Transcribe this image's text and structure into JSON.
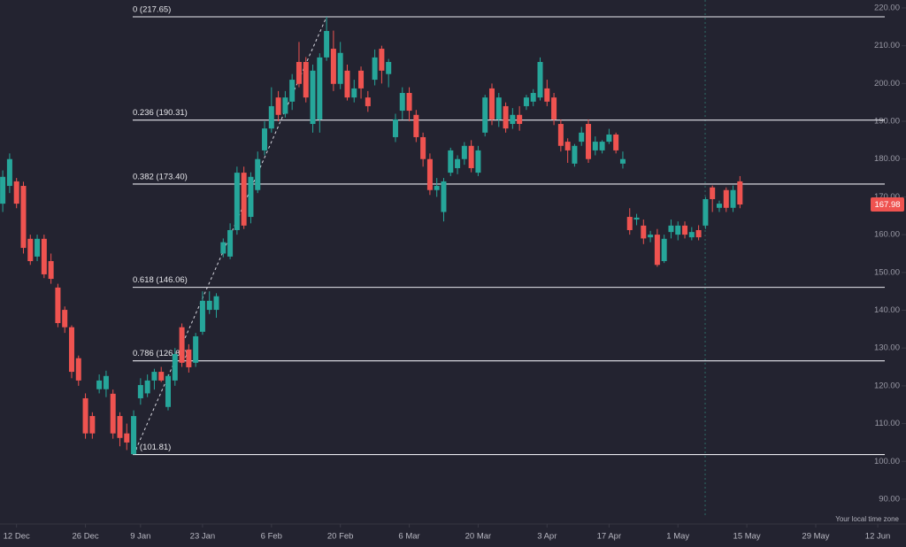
{
  "chart_data": {
    "type": "candlestick",
    "background": "#232330",
    "up_color": "#26a69a",
    "down_color": "#ef5350",
    "open": [
      168.2,
      172.9,
      174.1,
      172.9,
      158.9,
      154.2,
      158.9,
      153,
      146,
      140.1,
      135.5,
      127.3,
      116.7,
      112,
      119.1,
      119.1,
      117.9,
      112,
      107.4,
      101.9,
      116.7,
      118,
      121.4,
      123.7,
      114.4,
      121.4,
      135.5,
      129.6,
      126.1,
      134.3,
      140.1,
      140.1,
      155,
      154.2,
      161.2,
      176.4,
      164.7,
      171.8,
      182.3,
      188.1,
      196.3,
      192,
      195.2,
      205.7,
      205.7,
      189.3,
      190.5,
      206.9,
      209.2,
      199.9,
      203.4,
      196.3,
      203.4,
      196.3,
      201,
      209.2,
      202.5,
      185.8,
      192.8,
      197.5,
      191.7,
      185.8,
      180,
      171.8,
      166,
      176.4,
      177.6,
      180,
      183.5,
      176.4,
      187,
      198.7,
      190.5,
      194,
      189.3,
      191.7,
      194,
      195.2,
      196.3,
      198.7,
      196.3,
      189.3,
      184.6,
      178.8,
      184.6,
      189.3,
      182.3,
      182.3,
      184.6,
      186.5,
      178.8,
      164.7,
      164,
      162.4,
      159.3,
      160,
      153,
      160.7,
      160,
      162.4,
      159.3,
      161.2,
      162.4,
      172.5,
      167.1,
      171.8,
      167.1,
      174.1
    ],
    "high": [
      177,
      181.5,
      175,
      174,
      160,
      160,
      160,
      155,
      147,
      141,
      136,
      128,
      118,
      113,
      123,
      124,
      119,
      113,
      110,
      113.5,
      122,
      123,
      124.5,
      125,
      123,
      130,
      136.5,
      131,
      134,
      145,
      145,
      144.5,
      159,
      163,
      178,
      178,
      176.5,
      182,
      190,
      199,
      198,
      198,
      202.5,
      211,
      207,
      205,
      208,
      217.65,
      214,
      211,
      205,
      201,
      204.5,
      198,
      209,
      210,
      206.5,
      192,
      199,
      199,
      193,
      187,
      181.5,
      175,
      175,
      183,
      181,
      184.5,
      185,
      183.5,
      197,
      200,
      197.5,
      195,
      193.5,
      194,
      197,
      198.5,
      206.9,
      201,
      197.5,
      190.5,
      185.5,
      184,
      188.5,
      190.5,
      186,
      185,
      188,
      187,
      182,
      167,
      165.5,
      164,
      161,
      161.5,
      160,
      164,
      163.5,
      163.5,
      162,
      162.5,
      170,
      173,
      169,
      172.5,
      173,
      175.5
    ],
    "low": [
      166,
      171,
      167,
      155,
      152,
      153,
      148.5,
      147,
      135.5,
      134,
      122,
      120,
      106,
      106,
      118,
      117,
      106,
      104,
      103,
      101.81,
      115,
      117,
      119,
      121,
      113.5,
      120,
      125,
      123.5,
      125,
      133.5,
      139,
      138,
      154,
      153.5,
      160,
      161.5,
      163,
      171,
      181,
      187,
      190,
      191,
      193,
      199,
      195,
      187,
      187,
      206,
      198,
      198.5,
      195.5,
      195,
      196,
      192.5,
      199.5,
      200,
      199,
      184.5,
      190.5,
      190,
      184.5,
      178,
      170.5,
      170,
      163.5,
      175.5,
      176,
      178.5,
      176.5,
      175.5,
      186,
      189,
      188.5,
      187,
      188,
      187.5,
      193,
      194,
      195.5,
      194,
      189,
      182,
      179,
      178,
      183.5,
      179,
      181,
      181.5,
      184,
      181.5,
      177.5,
      160,
      162.5,
      157.5,
      158,
      151.5,
      152.5,
      159,
      158.5,
      159,
      158.5,
      158.5,
      161.5,
      166,
      166,
      166,
      166,
      167
    ],
    "close": [
      175.3,
      180,
      168.2,
      156.5,
      153,
      158.9,
      149.5,
      148.3,
      136.6,
      135.5,
      123.7,
      121.4,
      107.4,
      107.4,
      121.4,
      122.6,
      107.4,
      106.2,
      105,
      112,
      120.2,
      121.4,
      123.7,
      121.4,
      122.6,
      128.4,
      126.1,
      124.9,
      133.1,
      142.5,
      142.5,
      143.7,
      158,
      161.2,
      176.4,
      162.4,
      175.3,
      180,
      188.1,
      194,
      191.7,
      196.3,
      201,
      199.9,
      196.3,
      203.4,
      206.9,
      213.9,
      199.9,
      208.1,
      196.3,
      198.7,
      198.7,
      194,
      206.9,
      203.4,
      205.7,
      190.5,
      197.5,
      192.8,
      185.8,
      180,
      171.8,
      172.9,
      174.1,
      182.3,
      180,
      183.5,
      177.6,
      182.3,
      196.3,
      190.5,
      196.3,
      188.1,
      191.7,
      189.3,
      196.3,
      197.5,
      205.7,
      195.2,
      190.5,
      183.5,
      182.3,
      183.5,
      187,
      180,
      184.6,
      184.6,
      186.5,
      182.3,
      180,
      161.2,
      164.5,
      159,
      160,
      152,
      158.9,
      162.4,
      162.4,
      160,
      160.7,
      159.3,
      169.4,
      169.4,
      168.2,
      167.1,
      171.8,
      167.98
    ],
    "xlim": [
      -0.4,
      131.1
    ],
    "xticks": [
      {
        "value": 2,
        "label": "12 Dec"
      },
      {
        "value": 12,
        "label": "26 Dec"
      },
      {
        "value": 20,
        "label": "9 Jan"
      },
      {
        "value": 29,
        "label": "23 Jan"
      },
      {
        "value": 39,
        "label": "6 Feb"
      },
      {
        "value": 49,
        "label": "20 Feb"
      },
      {
        "value": 59,
        "label": "6 Mar"
      },
      {
        "value": 69,
        "label": "20 Mar"
      },
      {
        "value": 79,
        "label": "3 Apr"
      },
      {
        "value": 88,
        "label": "17 Apr"
      },
      {
        "value": 98,
        "label": "1 May"
      },
      {
        "value": 108,
        "label": "15 May"
      },
      {
        "value": 118,
        "label": "29 May"
      },
      {
        "value": 127,
        "label": "12 Jun"
      }
    ],
    "ylim": [
      83.9,
      222.1
    ],
    "yticks": [
      {
        "value": 90,
        "label": "90.00"
      },
      {
        "value": 100,
        "label": "100.00"
      },
      {
        "value": 110,
        "label": "110.00"
      },
      {
        "value": 120,
        "label": "120.00"
      },
      {
        "value": 130,
        "label": "130.00"
      },
      {
        "value": 140,
        "label": "140.00"
      },
      {
        "value": 150,
        "label": "150.00"
      },
      {
        "value": 160,
        "label": "160.00"
      },
      {
        "value": 170,
        "label": "170.00"
      },
      {
        "value": 180,
        "label": "180.00"
      },
      {
        "value": 190,
        "label": "190.00"
      },
      {
        "value": 200,
        "label": "200.00"
      },
      {
        "value": 210,
        "label": "210.00"
      },
      {
        "value": 220,
        "label": "220.00"
      }
    ],
    "fib_levels": [
      {
        "value": 217.65,
        "label": "0 (217.65)"
      },
      {
        "value": 190.31,
        "label": "0.236 (190.31)"
      },
      {
        "value": 173.4,
        "label": "0.382 (173.40)"
      },
      {
        "value": 146.06,
        "label": "0.618 (146.06)"
      },
      {
        "value": 126.6,
        "label": "0.786 (126.60)"
      },
      {
        "value": 101.81,
        "label": "1 (101.81)"
      }
    ],
    "last_price": 167.98,
    "timezone_label": "Your local time zone"
  }
}
